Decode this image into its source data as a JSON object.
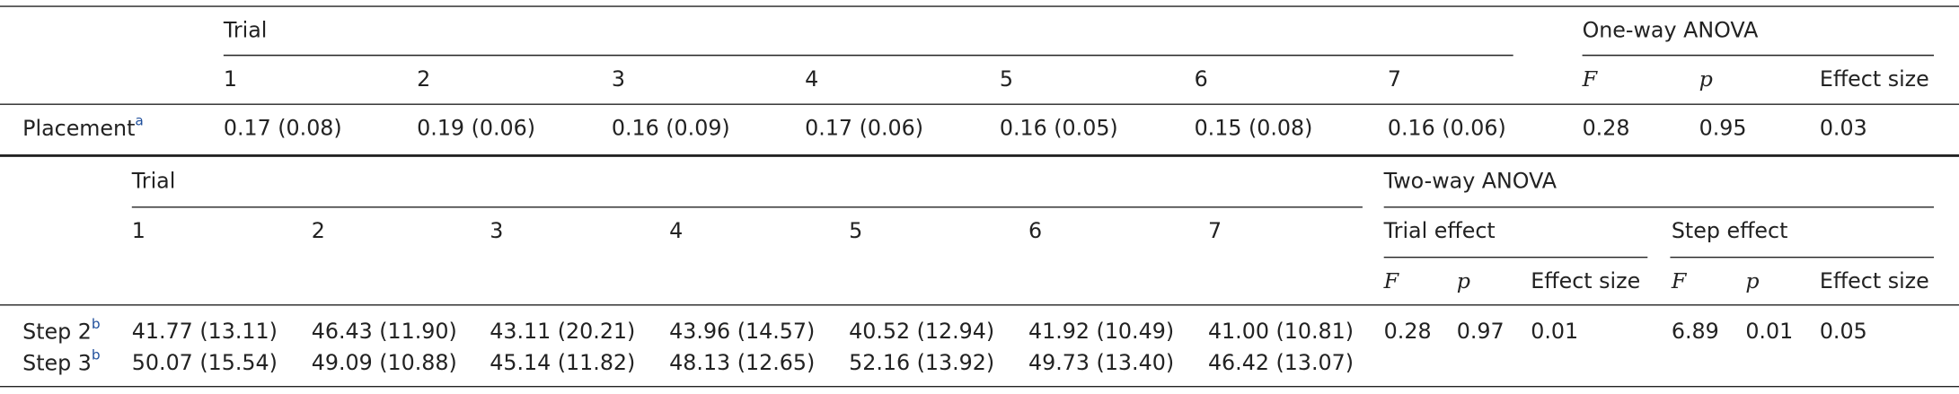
{
  "table1": {
    "header": {
      "trial": "Trial",
      "anova": "One-way ANOVA"
    },
    "columns": [
      "1",
      "2",
      "3",
      "4",
      "5",
      "6",
      "7",
      "F",
      "p",
      "Effect size"
    ],
    "rows": [
      {
        "label": "Placement",
        "note": "a",
        "cells": [
          "0.17 (0.08)",
          "0.19 (0.06)",
          "0.16 (0.09)",
          "0.17 (0.06)",
          "0.16 (0.05)",
          "0.15 (0.08)",
          "0.16 (0.06)",
          "0.28",
          "0.95",
          "0.03"
        ]
      }
    ]
  },
  "table2": {
    "header": {
      "trial": "Trial",
      "anova": "Two-way ANOVA",
      "trial_effect": "Trial effect",
      "step_effect": "Step effect"
    },
    "columns": [
      "1",
      "2",
      "3",
      "4",
      "5",
      "6",
      "7"
    ],
    "stat_columns": [
      "F",
      "p",
      "Effect size",
      "F",
      "p",
      "Effect size"
    ],
    "rows": [
      {
        "label": "Step 2",
        "note": "b",
        "cells": [
          "41.77 (13.11)",
          "46.43 (11.90)",
          "43.11 (20.21)",
          "43.96 (14.57)",
          "40.52 (12.94)",
          "41.92 (10.49)",
          "41.00 (10.81)"
        ],
        "stats": [
          "0.28",
          "0.97",
          "0.01",
          "6.89",
          "0.01",
          "0.05"
        ]
      },
      {
        "label": "Step 3",
        "note": "b",
        "cells": [
          "50.07 (15.54)",
          "49.09 (10.88)",
          "45.14 (11.82)",
          "48.13 (12.65)",
          "52.16 (13.92)",
          "49.73 (13.40)",
          "46.42 (13.07)"
        ]
      }
    ]
  }
}
